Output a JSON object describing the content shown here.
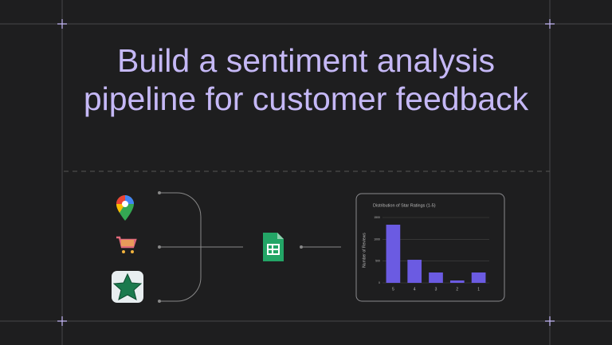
{
  "title": "Build a sentiment analysis pipeline for customer feedback",
  "chart_data": {
    "type": "bar",
    "title": "Distribution of Star Ratings (1-5)",
    "y_label": "Number of Reviews",
    "categories": [
      "5",
      "4",
      "3",
      "2",
      "1"
    ],
    "values": [
      1335,
      530,
      238,
      55,
      238
    ],
    "color": "#6b5be2",
    "ylim": [
      0,
      1500
    ],
    "yticks": [
      0,
      500,
      1000,
      1500
    ],
    "grid": true
  }
}
